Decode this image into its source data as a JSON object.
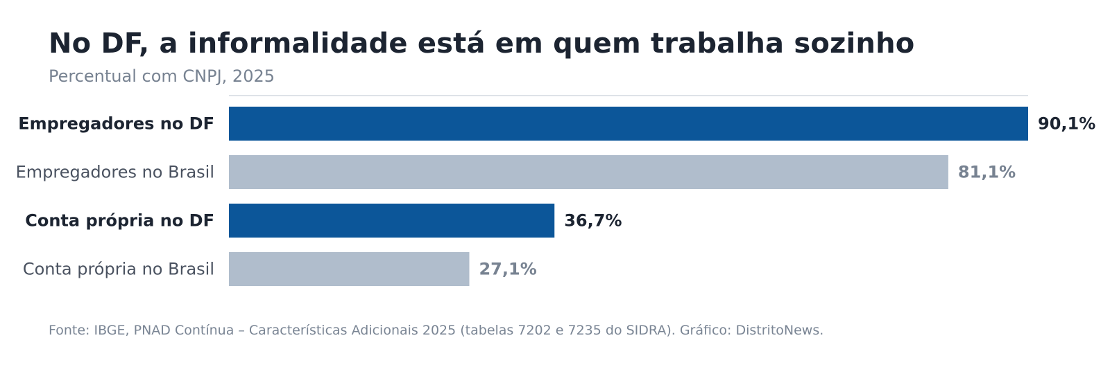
{
  "colors": {
    "highlight": "#0c5699",
    "muted": "#b0bdcc",
    "highlight_label": "#1c2431",
    "muted_label": "#4a5260",
    "muted_value": "#778291",
    "divider": "#d3d9e0"
  },
  "chart_data": {
    "type": "bar",
    "orientation": "horizontal",
    "title": "No DF, a informalidade está em quem trabalha sozinho",
    "subtitle": "Percentual com CNPJ, 2025",
    "categories": [
      "Empregadores no DF",
      "Empregadores no Brasil",
      "Conta própria no DF",
      "Conta própria no Brasil"
    ],
    "values": [
      90.1,
      81.1,
      36.7,
      27.1
    ],
    "value_labels": [
      "90,1%",
      "81,1%",
      "36,7%",
      "27,1%"
    ],
    "highlight": [
      true,
      false,
      true,
      false
    ],
    "xlim": [
      0,
      90.1
    ],
    "grid": false,
    "legend": "none",
    "source": "Fonte: IBGE, PNAD Contínua – Características Adicionais 2025 (tabelas 7202 e 7235 do SIDRA). Gráfico: DistritoNews."
  }
}
